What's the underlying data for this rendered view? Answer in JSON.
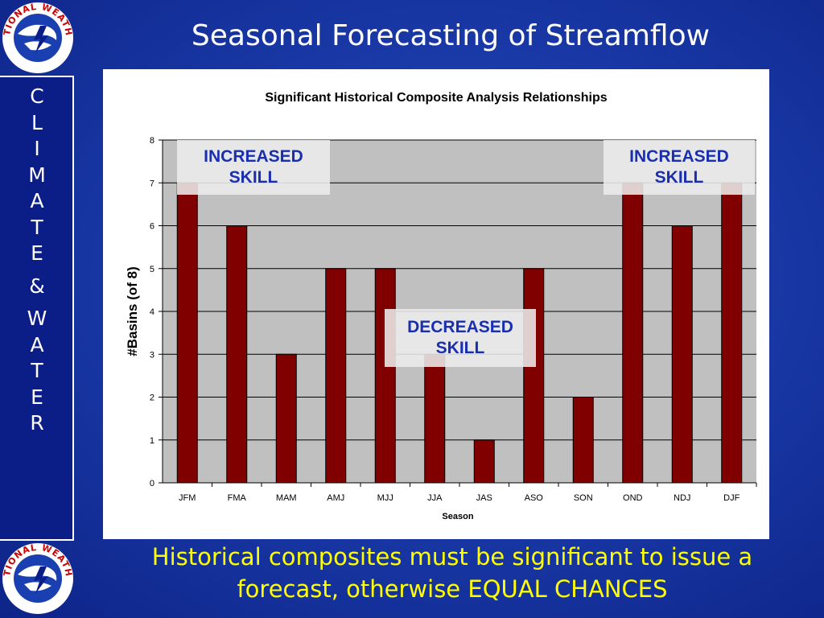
{
  "slide": {
    "title": "Seasonal Forecasting of Streamflow",
    "side_letters": [
      "C",
      "L",
      "I",
      "M",
      "A",
      "T",
      "E",
      "&",
      "W",
      "A",
      "T",
      "E",
      "R"
    ],
    "caption_line1": "Historical composites must be significant to issue a",
    "caption_line2": "forecast, otherwise EQUAL CHANCES",
    "logo_text": "NATIONAL WEATHER SERVICE"
  },
  "annotations": {
    "increased_left": [
      "INCREASED",
      "SKILL"
    ],
    "decreased": [
      "DECREASED",
      "SKILL"
    ],
    "increased_right": [
      "INCREASED",
      "SKILL"
    ]
  },
  "colors": {
    "bar": "#800000",
    "plot_bg": "#c0c0c0",
    "annotation_text": "#1a2fb0",
    "caption": "#ffff00"
  },
  "chart_data": {
    "type": "bar",
    "title": "Significant Historical Composite Analysis Relationships",
    "xlabel": "Season",
    "ylabel": "#Basins (of 8)",
    "categories": [
      "JFM",
      "FMA",
      "MAM",
      "AMJ",
      "MJJ",
      "JJA",
      "JAS",
      "ASO",
      "SON",
      "OND",
      "NDJ",
      "DJF"
    ],
    "values": [
      7,
      6,
      3,
      5,
      5,
      3,
      1,
      5,
      2,
      7,
      6,
      7
    ],
    "ylim": [
      0,
      8
    ],
    "yticks": [
      0,
      1,
      2,
      3,
      4,
      5,
      6,
      7,
      8
    ],
    "grid": true,
    "legend": "none"
  }
}
